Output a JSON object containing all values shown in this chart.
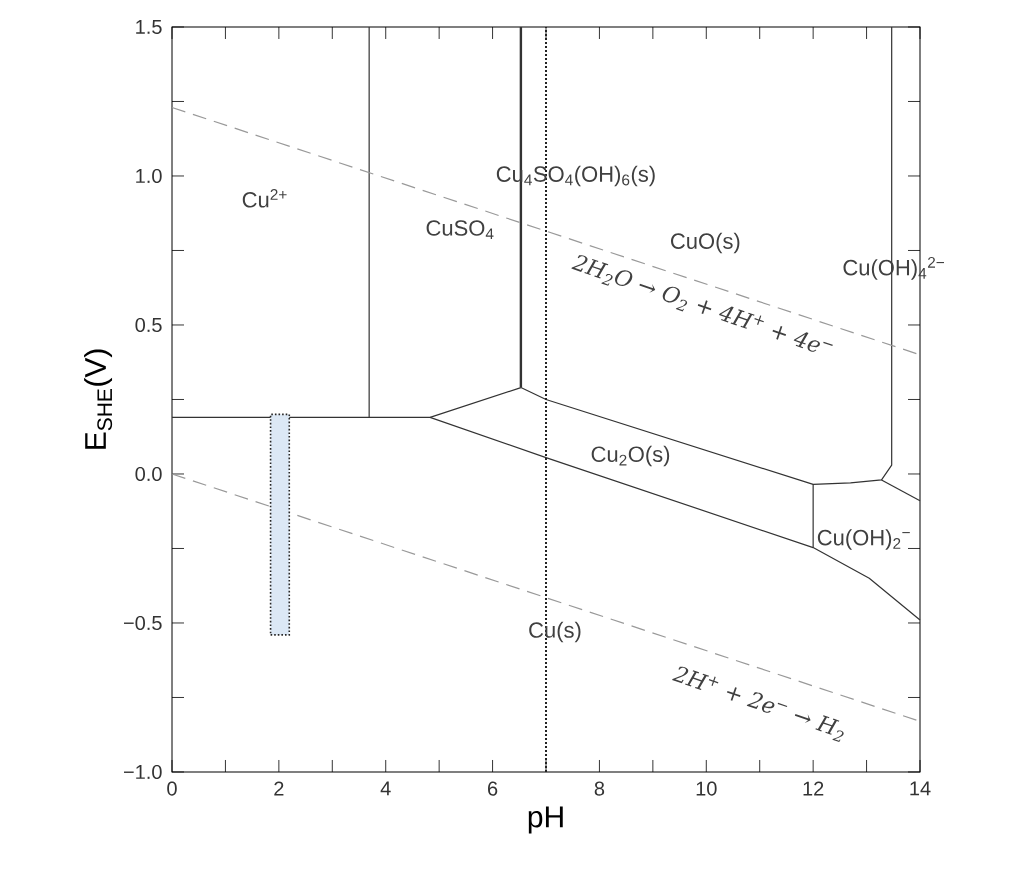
{
  "chart_data": {
    "type": "line",
    "xlabel": "pH",
    "ylabel": "E$_{SHE}$(V)",
    "xlim": [
      0,
      14
    ],
    "ylim": [
      -1.0,
      1.5
    ],
    "xticks": [
      0,
      {
        "value": 1,
        "label": null
      },
      2,
      {
        "value": 3,
        "label": null
      },
      4,
      {
        "value": 5,
        "label": null
      },
      6,
      {
        "value": 7,
        "label": null
      },
      8,
      {
        "value": 9,
        "label": null
      },
      10,
      {
        "value": 11,
        "label": null
      },
      12,
      {
        "value": 13,
        "label": null
      },
      14
    ],
    "yticks": [
      {
        "value": -1.0,
        "label": "−1.0"
      },
      {
        "value": -0.75,
        "label": null
      },
      {
        "value": -0.5,
        "label": "−0.5"
      },
      {
        "value": -0.25,
        "label": null
      },
      {
        "value": 0,
        "label": "0.0"
      },
      {
        "value": 0.25,
        "label": null
      },
      {
        "value": 0.5,
        "label": "0.5"
      },
      {
        "value": 0.75,
        "label": null
      },
      {
        "value": 1.0,
        "label": "1.0"
      },
      {
        "value": 1.25,
        "label": null
      },
      1.5
    ],
    "grid": false,
    "marker": "none",
    "series": [
      {
        "color": "#333333",
        "x": [
          0,
          4.83,
          6.53
        ],
        "values": [
          0.19,
          0.19,
          0.29
        ]
      },
      {
        "color": "#333333",
        "x": [
          3.69,
          3.69
        ],
        "values": [
          0.19,
          1.5
        ]
      },
      {
        "color": "#333333",
        "x": [
          6.53,
          6.53
        ],
        "values": [
          0.29,
          1.5
        ]
      },
      {
        "color": "#333333",
        "x": [
          6.53,
          7,
          12.0,
          12.7,
          13.28,
          13.47,
          13.47
        ],
        "values": [
          0.29,
          0.25,
          -0.035,
          -0.03,
          -0.02,
          0.03,
          1.5
        ]
      },
      {
        "color": "#333333",
        "x": [
          13.28,
          14
        ],
        "values": [
          -0.02,
          -0.09
        ]
      },
      {
        "color": "#333333",
        "x": [
          4.83,
          7,
          12.0,
          13.05,
          14
        ],
        "values": [
          0.19,
          0.055,
          -0.247,
          -0.35,
          -0.49
        ]
      },
      {
        "color": "#333333",
        "x": [
          12.0,
          12.0
        ],
        "values": [
          -0.035,
          -0.247
        ]
      },
      {
        "color": "#999999",
        "line_style": "dashed",
        "x": [
          0,
          14
        ],
        "values": [
          1.23,
          0.4
        ]
      },
      {
        "color": "#999999",
        "line_style": "dashed",
        "x": [
          0,
          14
        ],
        "values": [
          0,
          -0.83
        ]
      },
      {
        "type": "bar",
        "color": "#dce8f5",
        "line_style": "dotted",
        "x": [
          2.02
        ],
        "base": [
          -0.54
        ],
        "values": [
          0.74
        ]
      }
    ],
    "ref_lines": [
      {
        "axis": "x",
        "value": 7,
        "color": "#222222",
        "line_style": "dotted"
      }
    ],
    "annotations": [
      "Cu$^{2+}$",
      "CuSO$_{4}$",
      "Cu$_{4}$SO$_{4}$(OH)$_{6}$(s)",
      "CuO(s)",
      "Cu(OH)$_{4}$$^{2−}$",
      "Cu$_{2}$O(s)",
      "Cu(OH)$_{2}$$^{−}$",
      "Cu(s)",
      "2H$_{2}$O → O$_{2}$ + 4H$^{+}$ + 4e$^{−}$",
      "2H$^{+}$ + 2e$^{−}$ → H$_{2}$"
    ]
  }
}
